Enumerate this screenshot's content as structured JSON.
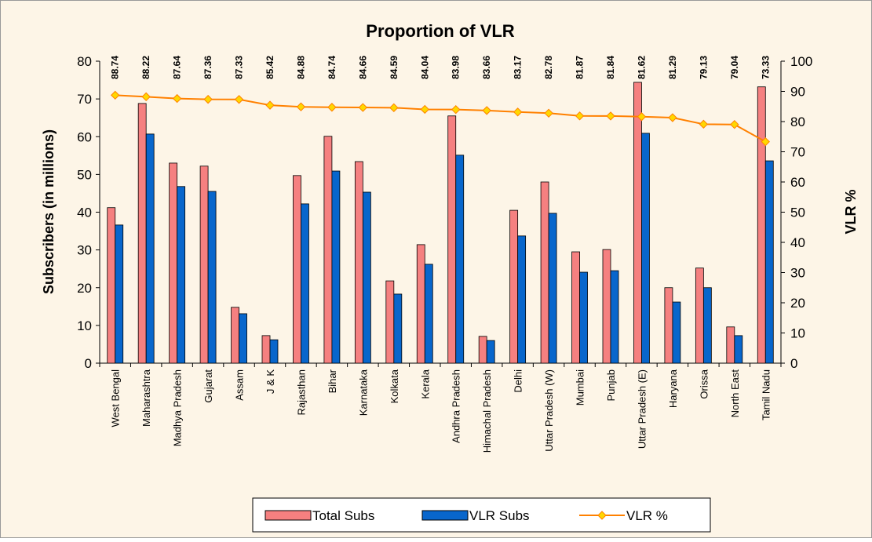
{
  "chart_data": {
    "type": "bar",
    "title": "Proportion of VLR",
    "y_label": "Subscribers (in millions)",
    "y2_label": "VLR %",
    "categories": [
      "West Bengal",
      "Maharashtra",
      "Madhya Pradesh",
      "Gujarat",
      "Assam",
      "J & K",
      "Rajasthan",
      "Bihar",
      "Karnataka",
      "Kolkata",
      "Kerala",
      "Andhra Pradesh",
      "Himachal Pradesh",
      "Delhi",
      "Uttar Pradesh (W)",
      "Mumbai",
      "Punjab",
      "Uttar Pradesh (E)",
      "Haryana",
      "Orissa",
      "North East",
      "Tamil Nadu"
    ],
    "series": [
      {
        "name": "Total Subs",
        "type": "bar",
        "color": "#f58080",
        "values": [
          41.2,
          68.8,
          53.0,
          52.2,
          14.8,
          7.3,
          49.7,
          60.1,
          53.4,
          21.8,
          31.4,
          65.5,
          7.1,
          40.5,
          48.0,
          29.5,
          30.1,
          74.4,
          20.0,
          25.2,
          9.6,
          73.2
        ]
      },
      {
        "name": "VLR Subs",
        "type": "bar",
        "color": "#0866cc",
        "values": [
          36.6,
          60.7,
          46.8,
          45.5,
          13.1,
          6.2,
          42.2,
          50.9,
          45.3,
          18.3,
          26.2,
          55.1,
          6.0,
          33.7,
          39.7,
          24.1,
          24.5,
          60.9,
          16.2,
          20.0,
          7.3,
          53.6
        ]
      },
      {
        "name": "VLR %",
        "type": "line",
        "axis": "y2",
        "color": "#ff8000",
        "marker_color": "#ffd700",
        "values": [
          88.74,
          88.22,
          87.64,
          87.36,
          87.33,
          85.42,
          84.88,
          84.74,
          84.66,
          84.59,
          84.04,
          83.98,
          83.66,
          83.17,
          82.78,
          81.87,
          81.84,
          81.62,
          81.29,
          79.13,
          79.04,
          73.33
        ]
      }
    ],
    "ylim": [
      0,
      80
    ],
    "yticks": [
      0,
      10,
      20,
      30,
      40,
      50,
      60,
      70,
      80
    ],
    "y2lim": [
      0,
      100
    ],
    "y2ticks": [
      0,
      10,
      20,
      30,
      40,
      50,
      60,
      70,
      80,
      90,
      100
    ],
    "legend": "bottom"
  }
}
